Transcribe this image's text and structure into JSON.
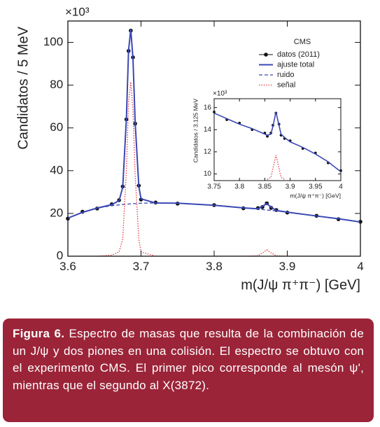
{
  "chart_data": [
    {
      "type": "line",
      "y_multiplier": "×10³",
      "xlabel": "m(J/ψ π⁺π⁻) [GeV]",
      "ylabel": "Candidatos / 5 MeV",
      "xlim": [
        3.6,
        4.0
      ],
      "xticks": [
        3.6,
        3.7,
        3.8,
        3.9,
        4
      ],
      "ylim": [
        0,
        110
      ],
      "yticks": [
        0,
        20,
        40,
        60,
        80,
        100
      ],
      "legend": "upper right",
      "legend_title": "CMS",
      "x": [
        3.6,
        3.62,
        3.64,
        3.66,
        3.67,
        3.675,
        3.68,
        3.683,
        3.686,
        3.689,
        3.692,
        3.697,
        3.7,
        3.72,
        3.75,
        3.8,
        3.84,
        3.86,
        3.866,
        3.872,
        3.878,
        3.885,
        3.9,
        3.94,
        3.97,
        4.0
      ],
      "series": [
        {
          "name": "datos (2011)",
          "color": "#111111",
          "style": "points",
          "values": [
            17.6,
            20.8,
            22.3,
            24.3,
            26.2,
            32.6,
            64.0,
            96.0,
            105.5,
            93.0,
            62.0,
            33.0,
            26.5,
            25.1,
            24.6,
            23.9,
            22.4,
            22.5,
            23.0,
            24.8,
            22.6,
            21.6,
            20.4,
            18.9,
            17.3,
            16.1
          ]
        },
        {
          "name": "ajuste total",
          "color": "#3a48b4",
          "style": "line",
          "values": [
            17.8,
            20.5,
            22.5,
            24.1,
            26.0,
            32.2,
            64.3,
            96.4,
            106.0,
            92.6,
            62.6,
            32.7,
            26.8,
            24.9,
            24.8,
            23.8,
            22.6,
            22.2,
            23.3,
            24.6,
            22.9,
            21.4,
            20.6,
            18.8,
            17.5,
            16.0
          ]
        },
        {
          "name": "ruido",
          "color": "#3a48b4",
          "style": "dashed",
          "values": [
            17.8,
            20.5,
            22.5,
            23.6,
            24.0,
            24.2,
            24.3,
            24.4,
            24.5,
            24.6,
            24.6,
            24.7,
            24.8,
            24.9,
            24.8,
            23.8,
            22.6,
            22.0,
            21.8,
            21.6,
            21.4,
            21.2,
            20.6,
            18.8,
            17.5,
            16.0
          ]
        },
        {
          "name": "señal",
          "color": "#e0303a",
          "style": "dotted",
          "values": [
            0,
            0,
            0,
            0.5,
            2,
            8,
            40,
            72,
            81.5,
            68,
            38,
            8,
            2,
            0,
            0,
            0,
            0,
            0.2,
            1.5,
            3,
            1.5,
            0.2,
            0,
            0,
            0,
            0
          ]
        }
      ]
    },
    {
      "type": "line",
      "y_multiplier": "×10³",
      "xlabel": "m(J/ψ π⁺π⁻) [GeV]",
      "ylabel": "Candidatos / 3.125 MeV",
      "xlim": [
        3.75,
        4.0
      ],
      "xticks": [
        3.75,
        3.8,
        3.85,
        3.9,
        3.95,
        4
      ],
      "ylim": [
        9.4,
        16.8
      ],
      "yticks": [
        10,
        12,
        14,
        16
      ],
      "x": [
        3.75,
        3.775,
        3.8,
        3.825,
        3.85,
        3.855,
        3.862,
        3.866,
        3.872,
        3.878,
        3.882,
        3.889,
        3.9,
        3.925,
        3.95,
        3.975,
        4.0
      ],
      "series": [
        {
          "color": "#111111",
          "style": "points",
          "values": [
            15.6,
            14.9,
            14.6,
            14.0,
            13.7,
            13.4,
            13.7,
            14.4,
            15.5,
            14.5,
            13.5,
            13.2,
            13.0,
            12.3,
            11.9,
            11.0,
            10.3
          ]
        },
        {
          "color": "#3a48b4",
          "style": "line",
          "values": [
            15.5,
            15.0,
            14.5,
            14.1,
            13.6,
            13.5,
            13.6,
            14.3,
            15.6,
            14.4,
            13.6,
            13.3,
            12.9,
            12.4,
            11.8,
            11.1,
            10.2
          ]
        },
        {
          "color": "#e0303a",
          "style": "dotted",
          "values": [
            null,
            null,
            null,
            null,
            null,
            9.5,
            9.7,
            10.5,
            11.7,
            10.5,
            9.7,
            9.5,
            null,
            null,
            null,
            null,
            null
          ]
        }
      ]
    }
  ],
  "caption": {
    "label": "Figura 6.",
    "text": "Espectro de masas que resulta de la combinación de un J/ψ y dos piones en una colisión. El espectro se obtuvo con el experimento CMS. El primer pico corresponde al mesón ψ', mientras que el segundo al X(3872)."
  }
}
